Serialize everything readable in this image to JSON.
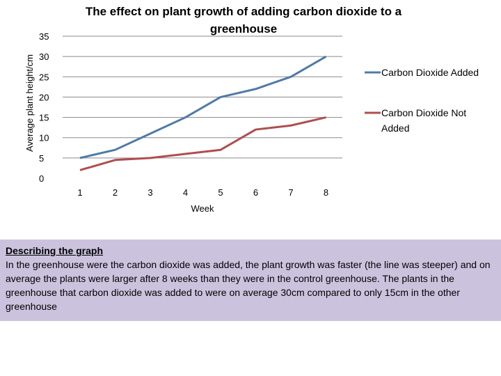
{
  "chart_data": {
    "type": "line",
    "title_lines": [
      "The effect on plant growth of adding carbon dioxide to a",
      "greenhouse"
    ],
    "xlabel": "Week",
    "ylabel": "Average plant height/cm",
    "categories": [
      "1",
      "2",
      "3",
      "4",
      "5",
      "6",
      "7",
      "8"
    ],
    "ylim": [
      0,
      35
    ],
    "yticks": [
      "0",
      "5",
      "10",
      "15",
      "20",
      "25",
      "30",
      "35"
    ],
    "grid": true,
    "legend_position": "right",
    "series": [
      {
        "name_lines": [
          "Carbon Dioxide Added"
        ],
        "values": [
          5,
          7,
          11,
          15,
          20,
          22,
          25,
          30
        ],
        "color": "#4f7aa8"
      },
      {
        "name_lines": [
          "Carbon Dioxide Not",
          "Added"
        ],
        "values": [
          2,
          4.5,
          5,
          6,
          7,
          12,
          13,
          15
        ],
        "color": "#b04e4e"
      }
    ]
  },
  "description": {
    "heading": "Describing the graph",
    "body": "In the greenhouse were the carbon dioxide was added, the plant growth was faster (the line was steeper) and on average the plants were larger after 8 weeks than they were in the control greenhouse. The plants in the greenhouse that carbon dioxide was added to were on average 30cm compared to only 15cm in the other greenhouse"
  }
}
